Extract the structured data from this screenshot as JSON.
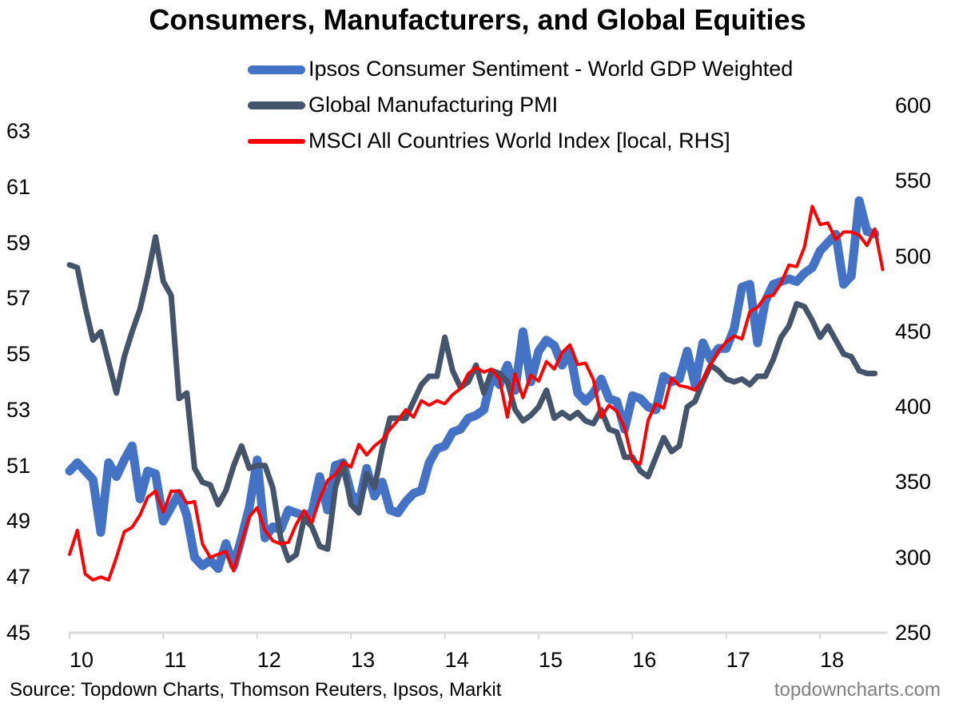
{
  "chart_data": {
    "type": "line",
    "title": "Consumers, Manufacturers, and Global Equities",
    "xlabel": "",
    "ylabel": "",
    "y2label": "",
    "x_ticks": [
      "10",
      "11",
      "12",
      "13",
      "14",
      "15",
      "16",
      "17",
      "18"
    ],
    "x_range": [
      2010.0,
      2018.75
    ],
    "y_left": {
      "ticks": [
        "63",
        "61",
        "59",
        "57",
        "55",
        "53",
        "51",
        "49",
        "47",
        "45"
      ],
      "ylim": [
        45,
        63
      ]
    },
    "y_right": {
      "ticks": [
        "600",
        "550",
        "500",
        "450",
        "400",
        "350",
        "300",
        "250"
      ],
      "ylim": [
        250,
        600
      ]
    },
    "grid": false,
    "legend_position": "top-center",
    "x_start": "2010-01",
    "frequency": "monthly",
    "series": [
      {
        "name": "Ipsos Consumer Sentiment - World GDP Weighted",
        "axis": "left",
        "color": "#4472C4",
        "values": [
          50.8,
          51.1,
          50.8,
          50.5,
          48.6,
          51.1,
          50.6,
          51.2,
          51.7,
          49.8,
          50.8,
          50.7,
          49.0,
          49.5,
          50.0,
          49.2,
          47.7,
          47.4,
          47.6,
          47.3,
          48.2,
          47.4,
          48.4,
          49.5,
          51.2,
          48.4,
          48.8,
          48.7,
          49.4,
          49.3,
          49.2,
          49.3,
          50.6,
          49.4,
          51.0,
          51.1,
          50.0,
          49.6,
          50.9,
          49.9,
          50.4,
          49.4,
          49.3,
          49.7,
          50.0,
          50.1,
          51.1,
          51.6,
          51.7,
          52.2,
          52.3,
          52.7,
          52.8,
          53.0,
          54.2,
          53.9,
          54.6,
          53.7,
          55.8,
          54.0,
          55.1,
          55.5,
          55.3,
          54.6,
          55.1,
          53.6,
          53.3,
          53.6,
          54.1,
          53.4,
          53.3,
          52.3,
          53.5,
          53.4,
          53.1,
          53.0,
          54.2,
          54.0,
          54.1,
          55.1,
          53.9,
          55.4,
          54.8,
          55.2,
          55.2,
          55.9,
          57.4,
          57.5,
          55.4,
          56.9,
          57.5,
          57.6,
          57.7,
          57.6,
          57.9,
          58.1,
          58.7,
          59.0,
          59.3,
          57.5,
          57.8,
          60.5,
          59.4,
          59.3
        ]
      },
      {
        "name": "Global Manufacturing PMI",
        "axis": "left",
        "color": "#44546A",
        "values": [
          58.2,
          58.1,
          56.7,
          55.5,
          55.8,
          54.7,
          53.6,
          54.9,
          55.8,
          56.6,
          57.8,
          59.2,
          57.6,
          57.1,
          53.4,
          53.6,
          50.9,
          50.4,
          50.3,
          49.6,
          50.1,
          51.0,
          51.7,
          50.9,
          51.0,
          51.0,
          50.2,
          48.4,
          47.6,
          47.8,
          49.1,
          48.8,
          48.1,
          48.0,
          50.2,
          51.1,
          49.6,
          49.3,
          50.7,
          50.2,
          51.6,
          52.7,
          52.7,
          52.7,
          53.3,
          53.9,
          54.2,
          54.2,
          55.6,
          54.4,
          53.8,
          54.0,
          54.6,
          53.6,
          54.4,
          54.3,
          54.0,
          53.0,
          52.6,
          52.8,
          53.1,
          53.7,
          52.7,
          52.9,
          52.7,
          52.9,
          52.6,
          52.5,
          53.0,
          52.3,
          52.2,
          51.3,
          51.3,
          50.8,
          50.6,
          51.3,
          52.0,
          51.5,
          51.7,
          53.1,
          53.3,
          54.0,
          54.6,
          54.4,
          54.1,
          54.0,
          54.1,
          53.9,
          54.2,
          54.2,
          54.8,
          55.6,
          56.0,
          56.8,
          56.7,
          56.2,
          55.6,
          56.0,
          55.5,
          55.0,
          54.9,
          54.4,
          54.3,
          54.3
        ]
      },
      {
        "name": "MSCI All Countries World Index [local, RHS]",
        "axis": "right",
        "color": "#FF0000",
        "values": [
          302,
          318,
          289,
          285,
          287,
          285,
          300,
          317,
          320,
          328,
          340,
          344,
          330,
          344,
          344,
          336,
          337,
          309,
          300,
          302,
          304,
          291,
          310,
          327,
          333,
          318,
          311,
          309,
          310,
          322,
          331,
          323,
          339,
          351,
          355,
          363,
          360,
          375,
          368,
          374,
          378,
          385,
          391,
          398,
          393,
          404,
          401,
          404,
          402,
          408,
          412,
          422,
          426,
          423,
          425,
          418,
          393,
          422,
          406,
          421,
          417,
          430,
          425,
          436,
          441,
          428,
          429,
          418,
          393,
          401,
          397,
          386,
          364,
          362,
          391,
          402,
          399,
          419,
          414,
          413,
          411,
          418,
          428,
          437,
          443,
          447,
          445,
          463,
          466,
          473,
          474,
          482,
          494,
          493,
          506,
          533,
          521,
          522,
          511,
          516,
          516,
          514,
          507,
          518,
          491
        ]
      }
    ]
  },
  "footer": {
    "source": "Source: Topdown Charts, Thomson Reuters, Ipsos, Markit",
    "brand": "topdowncharts.com"
  }
}
